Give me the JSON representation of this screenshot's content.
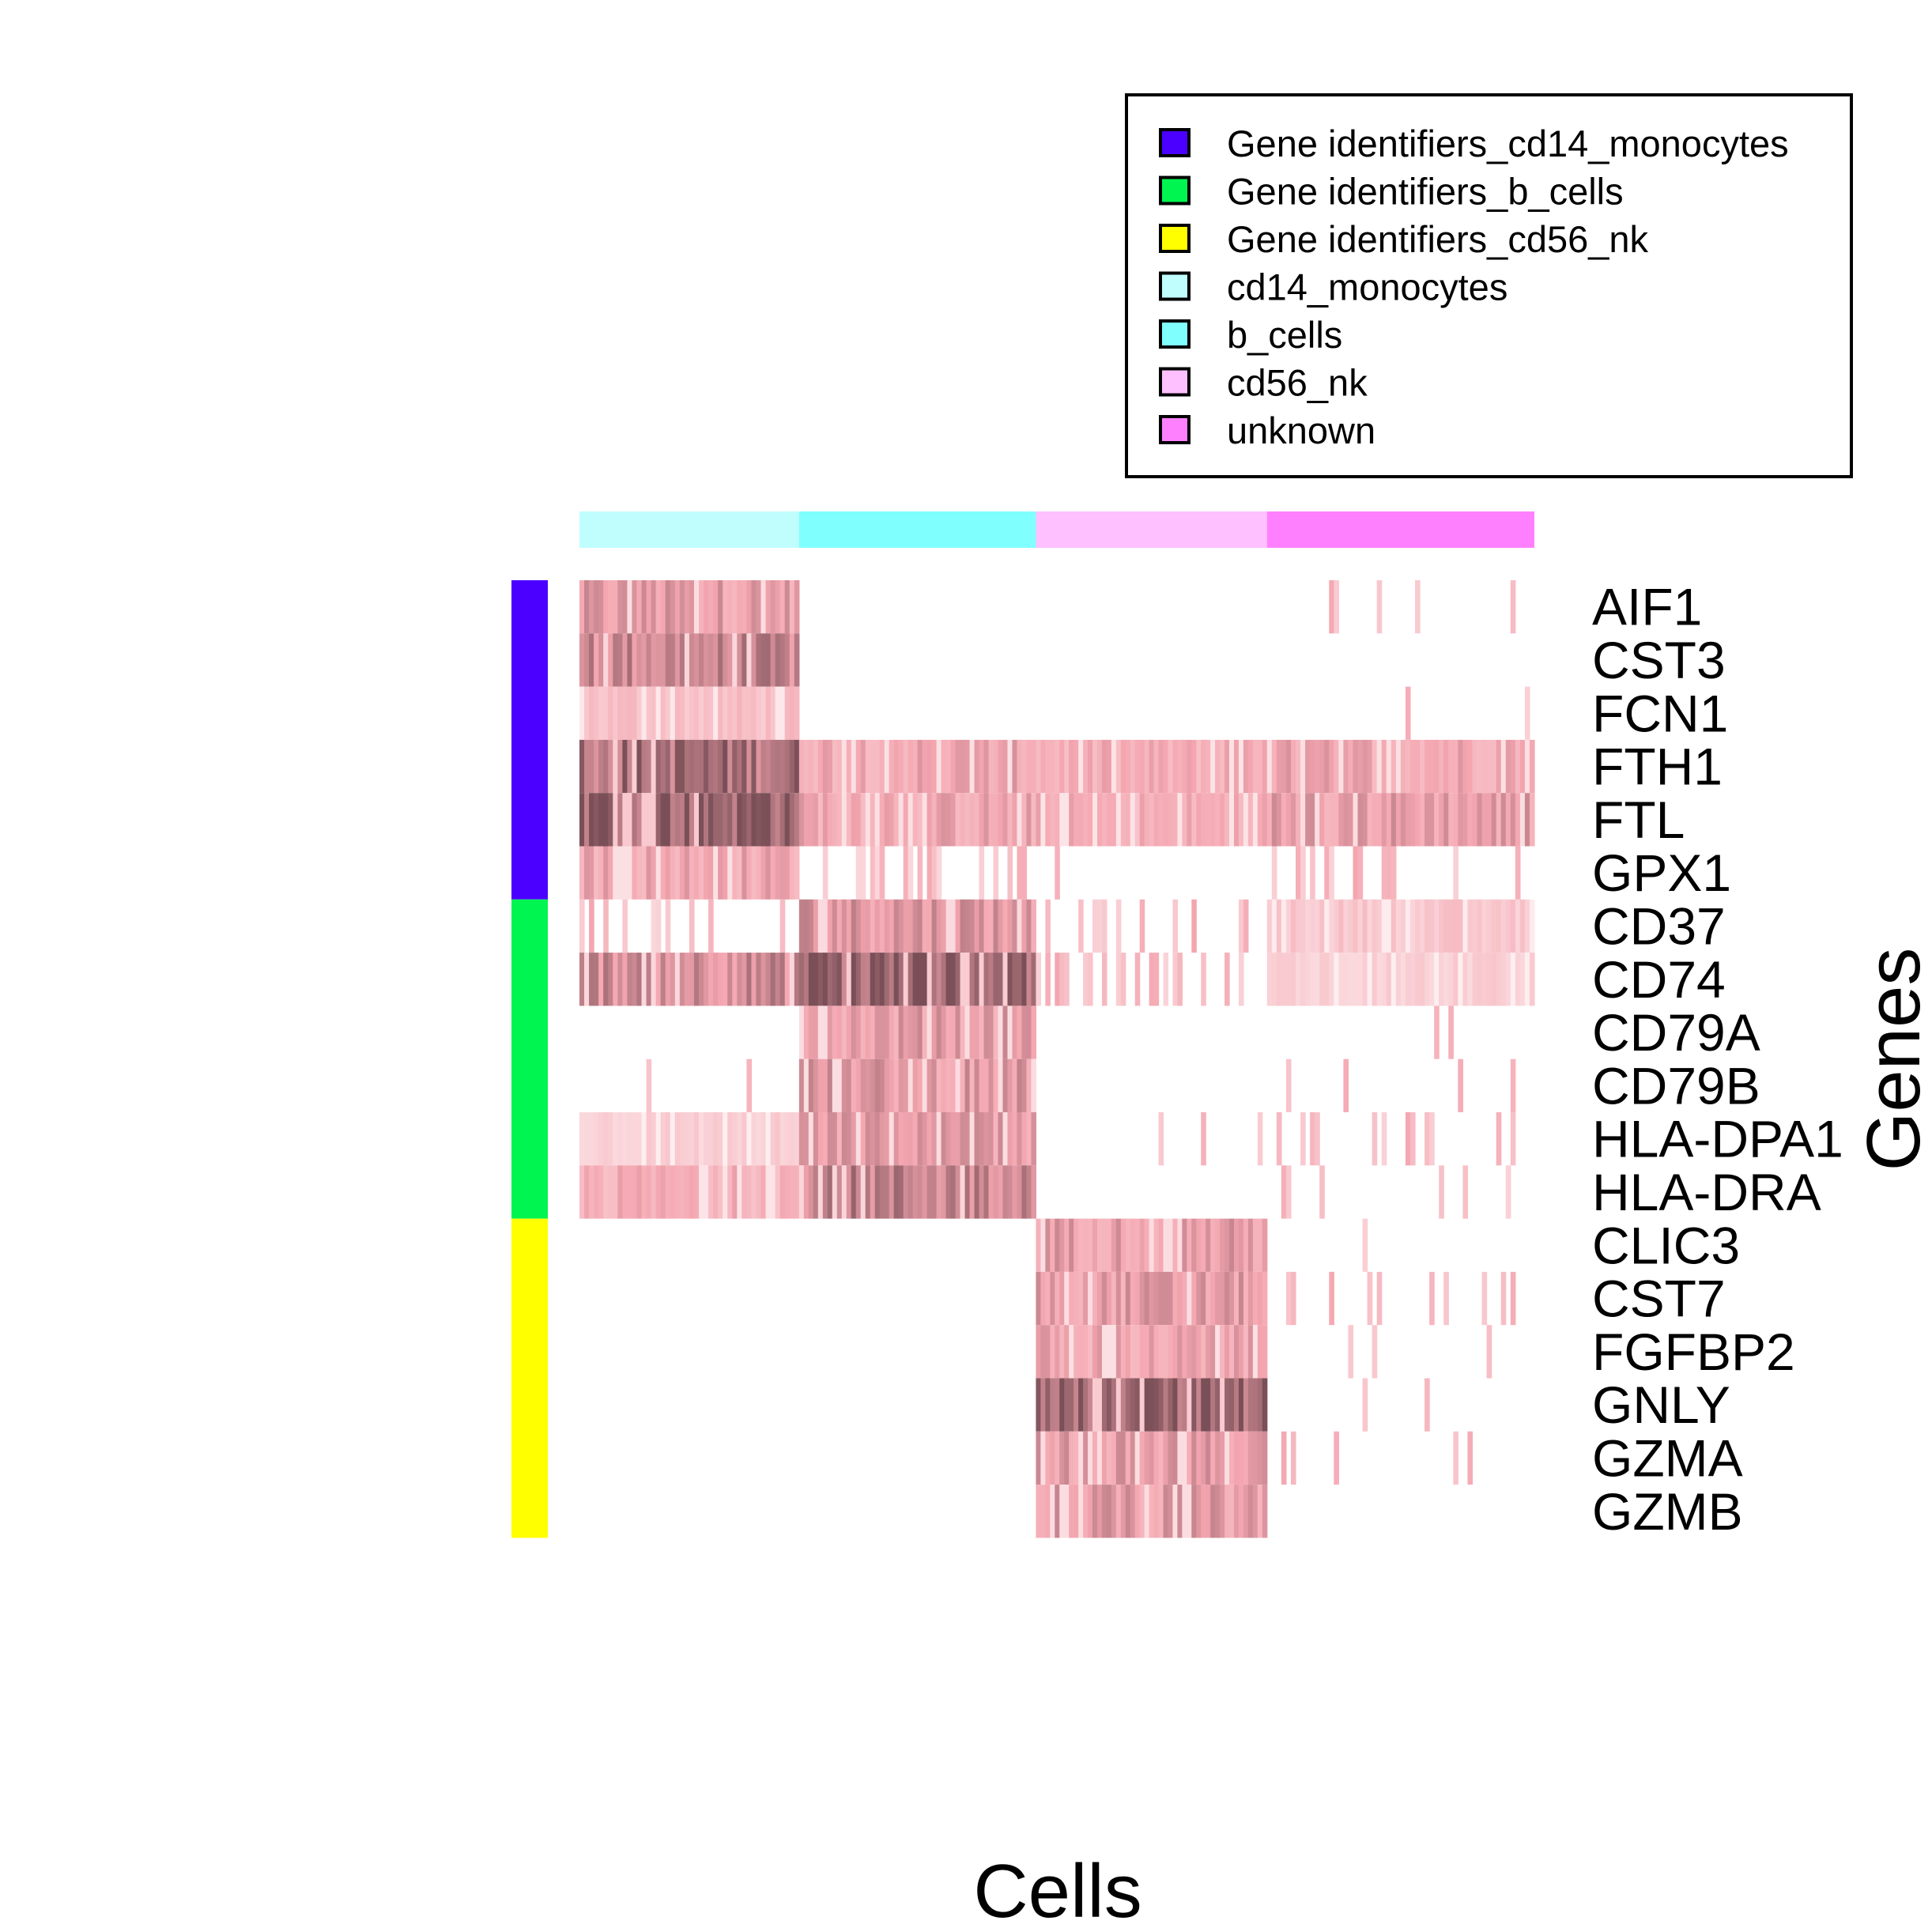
{
  "chart_data": {
    "type": "heatmap",
    "title": "",
    "xlabel": "Cells",
    "ylabel": "Genes",
    "legend_position": "top-right",
    "colors": {
      "low": "#ffffff",
      "mid": "#f4a6b0",
      "high": "#7a4f57"
    },
    "legend": [
      {
        "label": "Gene identifiers_cd14_monocytes",
        "color": "#4b00ff"
      },
      {
        "label": "Gene identifiers_b_cells",
        "color": "#00f550"
      },
      {
        "label": "Gene identifiers_cd56_nk",
        "color": "#ffff00"
      },
      {
        "label": "cd14_monocytes",
        "color": "#c0fefe"
      },
      {
        "label": "b_cells",
        "color": "#80ffff"
      },
      {
        "label": "cd56_nk",
        "color": "#ffc0ff"
      },
      {
        "label": "unknown",
        "color": "#ff80ff"
      }
    ],
    "cell_groups": [
      {
        "name": "cd14_monocytes",
        "color": "#c0fefe",
        "fraction": 0.23
      },
      {
        "name": "b_cells",
        "color": "#80ffff",
        "fraction": 0.248
      },
      {
        "name": "cd56_nk",
        "color": "#ffc0ff",
        "fraction": 0.242
      },
      {
        "name": "unknown",
        "color": "#ff80ff",
        "fraction": 0.28
      }
    ],
    "gene_groups": [
      {
        "name": "Gene identifiers_cd14_monocytes",
        "color": "#4b00ff",
        "genes": [
          "AIF1",
          "CST3",
          "FCN1",
          "FTH1",
          "FTL",
          "GPX1"
        ]
      },
      {
        "name": "Gene identifiers_b_cells",
        "color": "#00f550",
        "genes": [
          "CD37",
          "CD74",
          "CD79A",
          "CD79B",
          "HLA-DPA1",
          "HLA-DRA"
        ]
      },
      {
        "name": "Gene identifiers_cd56_nk",
        "color": "#ffff00",
        "genes": [
          "CLIC3",
          "CST7",
          "FGFBP2",
          "GNLY",
          "GZMA",
          "GZMB"
        ]
      }
    ],
    "genes": [
      "AIF1",
      "CST3",
      "FCN1",
      "FTH1",
      "FTL",
      "GPX1",
      "CD37",
      "CD74",
      "CD79A",
      "CD79B",
      "HLA-DPA1",
      "HLA-DRA",
      "CLIC3",
      "CST7",
      "FGFBP2",
      "GNLY",
      "GZMA",
      "GZMB"
    ],
    "mean_expression": [
      [
        0.6,
        0.0,
        0.0,
        0.08
      ],
      [
        0.72,
        0.0,
        0.0,
        0.0
      ],
      [
        0.4,
        0.0,
        0.0,
        0.02
      ],
      [
        0.85,
        0.55,
        0.5,
        0.55
      ],
      [
        0.95,
        0.55,
        0.5,
        0.6
      ],
      [
        0.55,
        0.12,
        0.05,
        0.2
      ],
      [
        0.2,
        0.65,
        0.15,
        0.35
      ],
      [
        0.7,
        0.9,
        0.2,
        0.3
      ],
      [
        0.0,
        0.6,
        0.0,
        0.03
      ],
      [
        0.02,
        0.62,
        0.03,
        0.06
      ],
      [
        0.3,
        0.6,
        0.03,
        0.15
      ],
      [
        0.5,
        0.75,
        0.0,
        0.12
      ],
      [
        0.0,
        0.0,
        0.6,
        0.03
      ],
      [
        0.0,
        0.0,
        0.6,
        0.08
      ],
      [
        0.0,
        0.0,
        0.55,
        0.02
      ],
      [
        0.03,
        0.0,
        0.92,
        0.03
      ],
      [
        0.0,
        0.0,
        0.6,
        0.05
      ],
      [
        0.02,
        0.0,
        0.6,
        0.0
      ]
    ]
  }
}
